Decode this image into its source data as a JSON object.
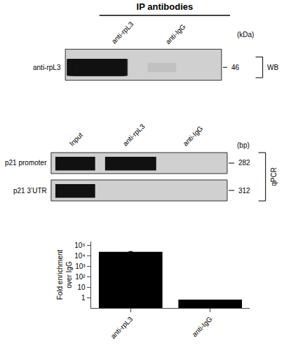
{
  "chart_data": {
    "type": "bar",
    "title": "IP antibodies",
    "annotations": [
      "anti-rpL3",
      "anti-IgG",
      "(kDa)",
      "anti-rpL3",
      "46",
      "WB",
      "Input",
      "anti-rpL3",
      "anti-IgG",
      "(bp)",
      "p21 promoter",
      "p21 3’UTR",
      "282",
      "312",
      "qPCR"
    ],
    "categories": [
      "anti-rpL3",
      "anti-IgG"
    ],
    "values": [
      25000,
      0.65
    ],
    "error_low": [
      1500,
      null
    ],
    "error_high": [
      2500,
      null
    ],
    "color": "#000000",
    "ylabel": "Fold enrichment\nover IgG",
    "log": "y",
    "ylim": [
      0.1,
      250000
    ],
    "yticks": [
      1,
      10,
      {
        "value": 100,
        "label": "10²"
      },
      {
        "value": 1000,
        "label": "10³"
      },
      {
        "value": 10000,
        "label": "10⁴"
      },
      {
        "value": 100000,
        "label": "10⁵"
      }
    ],
    "grid": false
  }
}
